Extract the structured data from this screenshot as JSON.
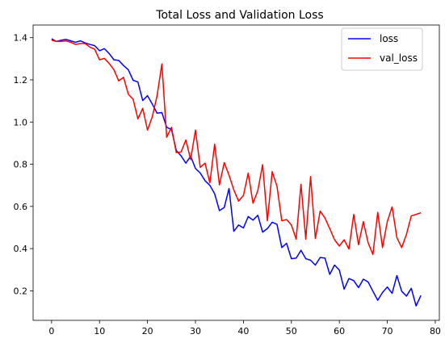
{
  "chart_data": {
    "type": "line",
    "title": "Total Loss and Validation Loss",
    "xlabel": "",
    "ylabel": "",
    "xlim": [
      -3.85,
      80.85
    ],
    "ylim": [
      0.06,
      1.46
    ],
    "xticks": [
      0,
      10,
      20,
      30,
      40,
      50,
      60,
      70,
      80
    ],
    "yticks": [
      0.2,
      0.4,
      0.6,
      0.8,
      1.0,
      1.2,
      1.4
    ],
    "ytick_labels": [
      "0.2",
      "0.4",
      "0.6",
      "0.8",
      "1.0",
      "1.2",
      "1.4"
    ],
    "grid": false,
    "legend": "top-right",
    "series": [
      {
        "name": "loss",
        "color": "#0000ff",
        "values": [
          1.395,
          1.382,
          1.388,
          1.392,
          1.385,
          1.378,
          1.385,
          1.375,
          1.368,
          1.362,
          1.338,
          1.348,
          1.325,
          1.295,
          1.292,
          1.268,
          1.248,
          1.198,
          1.19,
          1.102,
          1.125,
          1.085,
          1.042,
          1.045,
          0.975,
          0.965,
          0.865,
          0.84,
          0.805,
          0.838,
          0.78,
          0.758,
          0.722,
          0.7,
          0.66,
          0.58,
          0.595,
          0.685,
          0.482,
          0.512,
          0.498,
          0.552,
          0.535,
          0.558,
          0.478,
          0.495,
          0.525,
          0.515,
          0.405,
          0.425,
          0.352,
          0.355,
          0.392,
          0.352,
          0.345,
          0.322,
          0.358,
          0.355,
          0.278,
          0.322,
          0.298,
          0.208,
          0.258,
          0.248,
          0.215,
          0.255,
          0.242,
          0.198,
          0.155,
          0.192,
          0.218,
          0.188,
          0.272,
          0.198,
          0.175,
          0.212,
          0.128,
          0.178
        ]
      },
      {
        "name": "val_loss",
        "color": "#ff0000",
        "values": [
          1.388,
          1.382,
          1.382,
          1.385,
          1.378,
          1.368,
          1.372,
          1.372,
          1.355,
          1.345,
          1.295,
          1.302,
          1.278,
          1.248,
          1.195,
          1.212,
          1.132,
          1.108,
          1.015,
          1.065,
          0.962,
          1.025,
          1.125,
          1.275,
          0.928,
          0.975,
          0.855,
          0.858,
          0.915,
          0.822,
          0.962,
          0.785,
          0.805,
          0.712,
          0.895,
          0.702,
          0.808,
          0.748,
          0.678,
          0.625,
          0.652,
          0.758,
          0.615,
          0.675,
          0.798,
          0.532,
          0.765,
          0.695,
          0.532,
          0.538,
          0.512,
          0.445,
          0.705,
          0.445,
          0.742,
          0.448,
          0.578,
          0.545,
          0.495,
          0.442,
          0.412,
          0.442,
          0.398,
          0.562,
          0.418,
          0.528,
          0.428,
          0.372,
          0.572,
          0.405,
          0.528,
          0.598,
          0.452,
          0.405,
          0.468,
          0.555,
          0.562,
          0.57
        ]
      }
    ]
  }
}
